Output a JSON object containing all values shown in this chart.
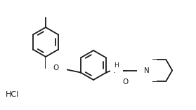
{
  "bg_color": "#ffffff",
  "line_color": "#1a1a1a",
  "line_width": 1.3,
  "font_size_atom": 7.5,
  "hcl_text": "HCl",
  "nh_text": "H",
  "o_text": "O",
  "n_text": "N",
  "carbonyl_o": "O",
  "figw": 2.79,
  "figh": 1.57,
  "dpi": 100
}
